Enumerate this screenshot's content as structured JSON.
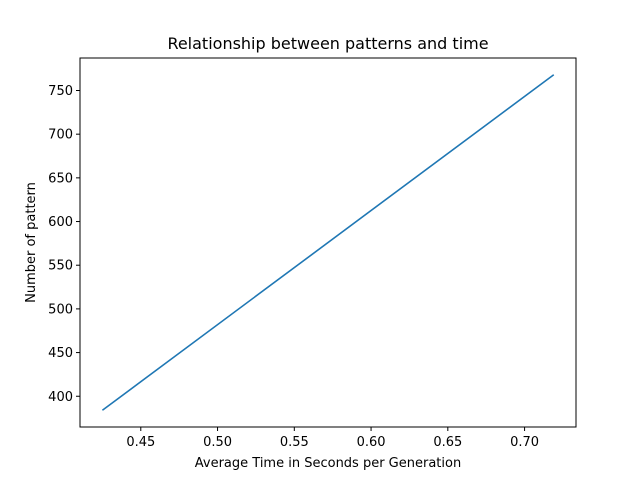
{
  "chart_data": {
    "type": "line",
    "title": "Relationship between patterns and time",
    "xlabel": "Average Time in Seconds per Generation",
    "ylabel": "Number of pattern",
    "xlim": [
      0.4104,
      0.7335
    ],
    "ylim": [
      364.8,
      787.2
    ],
    "x_ticks": [
      0.45,
      0.5,
      0.55,
      0.6,
      0.65,
      0.7
    ],
    "x_tick_labels": [
      "0.45",
      "0.50",
      "0.55",
      "0.60",
      "0.65",
      "0.70"
    ],
    "y_ticks": [
      400,
      450,
      500,
      550,
      600,
      650,
      700,
      750
    ],
    "y_tick_labels": [
      "400",
      "450",
      "500",
      "550",
      "600",
      "650",
      "700",
      "750"
    ],
    "grid": false,
    "series": [
      {
        "color": "#1f77b4",
        "x": [
          0.425,
          0.719
        ],
        "y": [
          384,
          768
        ]
      }
    ]
  }
}
